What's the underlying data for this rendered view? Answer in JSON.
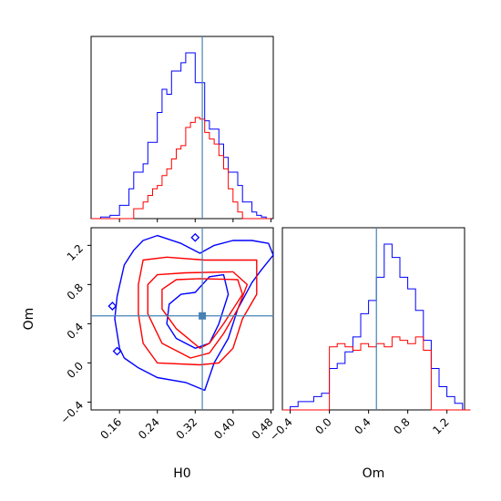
{
  "colors": {
    "blue": "#0000ff",
    "red": "#ff0000",
    "truth": "#4682b4"
  },
  "chart_data": {
    "type": "corner",
    "parameters": [
      "H0",
      "Om"
    ],
    "truth": {
      "H0": 0.335,
      "Om": 0.48
    },
    "axes": {
      "H0_range": [
        0.1,
        0.485
      ],
      "Om_range": [
        -0.48,
        1.38
      ],
      "H0_ticks": [
        "0.16",
        "0.24",
        "0.32",
        "0.40",
        "0.48"
      ],
      "Om_ticks": [
        "−0.4",
        "0.0",
        "0.4",
        "0.8",
        "1.2"
      ],
      "H0_tick_values": [
        0.16,
        0.24,
        0.32,
        0.4,
        0.48
      ],
      "Om_tick_values": [
        -0.4,
        0.0,
        0.4,
        0.8,
        1.2
      ]
    },
    "series": [
      {
        "color": "blue",
        "hist_H0": [
          [
            0.1,
            0.0
          ],
          [
            0.11,
            0.0
          ],
          [
            0.12,
            0.01
          ],
          [
            0.13,
            0.01
          ],
          [
            0.14,
            0.02
          ],
          [
            0.15,
            0.02
          ],
          [
            0.16,
            0.08
          ],
          [
            0.17,
            0.08
          ],
          [
            0.18,
            0.18
          ],
          [
            0.19,
            0.28
          ],
          [
            0.2,
            0.28
          ],
          [
            0.21,
            0.33
          ],
          [
            0.22,
            0.46
          ],
          [
            0.23,
            0.46
          ],
          [
            0.24,
            0.64
          ],
          [
            0.25,
            0.78
          ],
          [
            0.26,
            0.75
          ],
          [
            0.27,
            0.89
          ],
          [
            0.28,
            0.89
          ],
          [
            0.29,
            0.94
          ],
          [
            0.3,
            1.0
          ],
          [
            0.31,
            1.0
          ],
          [
            0.32,
            0.82
          ],
          [
            0.33,
            0.82
          ],
          [
            0.34,
            0.59
          ],
          [
            0.35,
            0.54
          ],
          [
            0.36,
            0.54
          ],
          [
            0.37,
            0.45
          ],
          [
            0.38,
            0.37
          ],
          [
            0.39,
            0.28
          ],
          [
            0.4,
            0.28
          ],
          [
            0.41,
            0.2
          ],
          [
            0.42,
            0.1
          ],
          [
            0.43,
            0.1
          ],
          [
            0.44,
            0.04
          ],
          [
            0.45,
            0.02
          ],
          [
            0.46,
            0.01
          ],
          [
            0.47,
            0.0
          ]
        ],
        "hist_Om": [
          [
            -0.48,
            0.0
          ],
          [
            -0.4,
            0.02
          ],
          [
            -0.32,
            0.05
          ],
          [
            -0.24,
            0.05
          ],
          [
            -0.16,
            0.08
          ],
          [
            -0.08,
            0.1
          ],
          [
            0.0,
            0.25
          ],
          [
            0.08,
            0.28
          ],
          [
            0.16,
            0.35
          ],
          [
            0.24,
            0.44
          ],
          [
            0.32,
            0.58
          ],
          [
            0.4,
            0.66
          ],
          [
            0.48,
            0.8
          ],
          [
            0.56,
            1.0
          ],
          [
            0.64,
            0.92
          ],
          [
            0.72,
            0.8
          ],
          [
            0.8,
            0.73
          ],
          [
            0.88,
            0.6
          ],
          [
            0.96,
            0.42
          ],
          [
            1.04,
            0.25
          ],
          [
            1.12,
            0.14
          ],
          [
            1.2,
            0.08
          ],
          [
            1.28,
            0.04
          ],
          [
            1.36,
            0.0
          ]
        ]
      },
      {
        "color": "red",
        "hist_H0": [
          [
            0.1,
            0.0
          ],
          [
            0.11,
            0.0
          ],
          [
            0.12,
            0.0
          ],
          [
            0.13,
            0.0
          ],
          [
            0.14,
            0.0
          ],
          [
            0.15,
            0.0
          ],
          [
            0.16,
            0.0
          ],
          [
            0.17,
            0.0
          ],
          [
            0.18,
            0.0
          ],
          [
            0.19,
            0.06
          ],
          [
            0.2,
            0.06
          ],
          [
            0.21,
            0.1
          ],
          [
            0.22,
            0.14
          ],
          [
            0.23,
            0.18
          ],
          [
            0.24,
            0.2
          ],
          [
            0.25,
            0.26
          ],
          [
            0.26,
            0.3
          ],
          [
            0.27,
            0.36
          ],
          [
            0.28,
            0.42
          ],
          [
            0.29,
            0.44
          ],
          [
            0.3,
            0.55
          ],
          [
            0.31,
            0.58
          ],
          [
            0.32,
            0.61
          ],
          [
            0.33,
            0.6
          ],
          [
            0.34,
            0.52
          ],
          [
            0.35,
            0.48
          ],
          [
            0.36,
            0.45
          ],
          [
            0.37,
            0.38
          ],
          [
            0.38,
            0.3
          ],
          [
            0.39,
            0.18
          ],
          [
            0.4,
            0.1
          ],
          [
            0.41,
            0.04
          ],
          [
            0.42,
            0.0
          ],
          [
            0.43,
            0.0
          ],
          [
            0.44,
            0.0
          ],
          [
            0.45,
            0.0
          ],
          [
            0.46,
            0.0
          ],
          [
            0.47,
            0.0
          ]
        ],
        "hist_Om": [
          [
            -0.48,
            0.0
          ],
          [
            -0.4,
            0.0
          ],
          [
            -0.32,
            0.0
          ],
          [
            -0.24,
            0.0
          ],
          [
            -0.16,
            0.0
          ],
          [
            -0.08,
            0.0
          ],
          [
            0.0,
            0.38
          ],
          [
            0.08,
            0.4
          ],
          [
            0.16,
            0.38
          ],
          [
            0.24,
            0.36
          ],
          [
            0.32,
            0.4
          ],
          [
            0.4,
            0.38
          ],
          [
            0.48,
            0.4
          ],
          [
            0.56,
            0.38
          ],
          [
            0.64,
            0.44
          ],
          [
            0.72,
            0.42
          ],
          [
            0.8,
            0.4
          ],
          [
            0.88,
            0.44
          ],
          [
            0.96,
            0.36
          ],
          [
            1.04,
            0.0
          ],
          [
            1.12,
            0.0
          ],
          [
            1.2,
            0.0
          ],
          [
            1.28,
            0.0
          ],
          [
            1.36,
            0.0
          ]
        ]
      }
    ],
    "contours": {
      "blue_outer": [
        [
          0.16,
          0.15
        ],
        [
          0.15,
          0.45
        ],
        [
          0.155,
          0.68
        ],
        [
          0.17,
          1.0
        ],
        [
          0.19,
          1.15
        ],
        [
          0.21,
          1.25
        ],
        [
          0.24,
          1.3
        ],
        [
          0.29,
          1.22
        ],
        [
          0.33,
          1.12
        ],
        [
          0.36,
          1.2
        ],
        [
          0.4,
          1.25
        ],
        [
          0.44,
          1.25
        ],
        [
          0.475,
          1.22
        ],
        [
          0.485,
          1.1
        ],
        [
          0.46,
          0.95
        ],
        [
          0.44,
          0.82
        ],
        [
          0.41,
          0.55
        ],
        [
          0.39,
          0.25
        ],
        [
          0.36,
          0.0
        ],
        [
          0.34,
          -0.28
        ],
        [
          0.3,
          -0.2
        ],
        [
          0.24,
          -0.15
        ],
        [
          0.2,
          -0.05
        ],
        [
          0.17,
          0.05
        ]
      ],
      "blue_inner": [
        [
          0.26,
          0.4
        ],
        [
          0.265,
          0.6
        ],
        [
          0.29,
          0.7
        ],
        [
          0.32,
          0.72
        ],
        [
          0.35,
          0.88
        ],
        [
          0.38,
          0.9
        ],
        [
          0.39,
          0.7
        ],
        [
          0.37,
          0.4
        ],
        [
          0.35,
          0.2
        ],
        [
          0.32,
          0.15
        ],
        [
          0.28,
          0.25
        ]
      ],
      "red_outer": [
        [
          0.2,
          0.8
        ],
        [
          0.21,
          1.05
        ],
        [
          0.26,
          1.08
        ],
        [
          0.34,
          1.05
        ],
        [
          0.45,
          1.05
        ],
        [
          0.45,
          0.7
        ],
        [
          0.42,
          0.45
        ],
        [
          0.4,
          0.15
        ],
        [
          0.37,
          0.0
        ],
        [
          0.33,
          -0.02
        ],
        [
          0.24,
          0.0
        ],
        [
          0.21,
          0.2
        ],
        [
          0.2,
          0.5
        ]
      ],
      "red_mid": [
        [
          0.22,
          0.8
        ],
        [
          0.24,
          0.9
        ],
        [
          0.3,
          0.92
        ],
        [
          0.4,
          0.93
        ],
        [
          0.43,
          0.8
        ],
        [
          0.41,
          0.55
        ],
        [
          0.38,
          0.3
        ],
        [
          0.35,
          0.1
        ],
        [
          0.31,
          0.05
        ],
        [
          0.25,
          0.2
        ],
        [
          0.22,
          0.5
        ]
      ],
      "red_inner": [
        [
          0.25,
          0.75
        ],
        [
          0.28,
          0.85
        ],
        [
          0.33,
          0.86
        ],
        [
          0.41,
          0.85
        ],
        [
          0.42,
          0.7
        ],
        [
          0.38,
          0.4
        ],
        [
          0.35,
          0.2
        ],
        [
          0.33,
          0.15
        ],
        [
          0.28,
          0.35
        ],
        [
          0.25,
          0.55
        ]
      ]
    },
    "outliers": [
      {
        "H0": 0.145,
        "Om": 0.58
      },
      {
        "H0": 0.155,
        "Om": 0.12
      },
      {
        "H0": 0.32,
        "Om": 1.28
      }
    ],
    "xlabel_H0": "H0",
    "xlabel_Om": "Om",
    "ylabel_Om": "Om"
  }
}
